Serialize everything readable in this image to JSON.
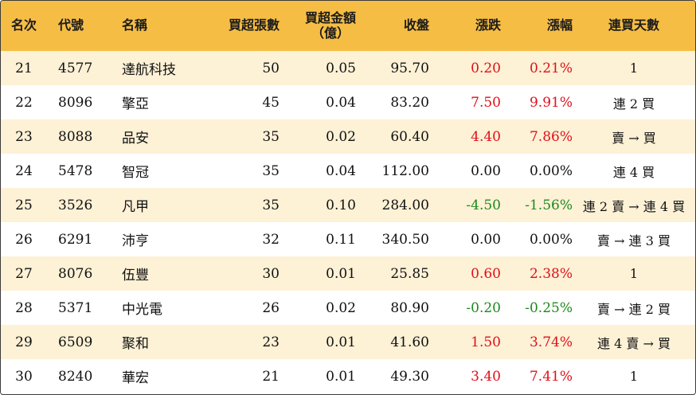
{
  "headers": {
    "rank": "名次",
    "code": "代號",
    "name": "名稱",
    "net_buy_lots": "買超張數",
    "net_buy_amount_line1": "買超金額",
    "net_buy_amount_line2": "（億）",
    "close": "收盤",
    "change": "漲跌",
    "change_pct": "漲幅",
    "consecutive_days": "連買天數"
  },
  "colors": {
    "header_bg": "#f6bd45",
    "row_alt_bg": "#fdf1d6",
    "up": "#e0101a",
    "down": "#1c8a1c"
  },
  "rows": [
    {
      "rank": "21",
      "code": "4577",
      "name": "達航科技",
      "lots": "50",
      "amount": "0.05",
      "close": "95.70",
      "change": "0.20",
      "pct": "0.21%",
      "trend": "up",
      "days": "1"
    },
    {
      "rank": "22",
      "code": "8096",
      "name": "擎亞",
      "lots": "45",
      "amount": "0.04",
      "close": "83.20",
      "change": "7.50",
      "pct": "9.91%",
      "trend": "up",
      "days": "連 2 買"
    },
    {
      "rank": "23",
      "code": "8088",
      "name": "品安",
      "lots": "35",
      "amount": "0.02",
      "close": "60.40",
      "change": "4.40",
      "pct": "7.86%",
      "trend": "up",
      "days": "賣 → 買"
    },
    {
      "rank": "24",
      "code": "5478",
      "name": "智冠",
      "lots": "35",
      "amount": "0.04",
      "close": "112.00",
      "change": "0.00",
      "pct": "0.00%",
      "trend": "flat",
      "days": "連 4 買"
    },
    {
      "rank": "25",
      "code": "3526",
      "name": "凡甲",
      "lots": "35",
      "amount": "0.10",
      "close": "284.00",
      "change": "-4.50",
      "pct": "-1.56%",
      "trend": "down",
      "days": "連 2 賣 → 連 4 買"
    },
    {
      "rank": "26",
      "code": "6291",
      "name": "沛亨",
      "lots": "32",
      "amount": "0.11",
      "close": "340.50",
      "change": "0.00",
      "pct": "0.00%",
      "trend": "flat",
      "days": "賣 → 連 3 買"
    },
    {
      "rank": "27",
      "code": "8076",
      "name": "伍豐",
      "lots": "30",
      "amount": "0.01",
      "close": "25.85",
      "change": "0.60",
      "pct": "2.38%",
      "trend": "up",
      "days": "1"
    },
    {
      "rank": "28",
      "code": "5371",
      "name": "中光電",
      "lots": "26",
      "amount": "0.02",
      "close": "80.90",
      "change": "-0.20",
      "pct": "-0.25%",
      "trend": "down",
      "days": "賣 → 連 2 買"
    },
    {
      "rank": "29",
      "code": "6509",
      "name": "聚和",
      "lots": "23",
      "amount": "0.01",
      "close": "41.60",
      "change": "1.50",
      "pct": "3.74%",
      "trend": "up",
      "days": "連 4 賣 → 買"
    },
    {
      "rank": "30",
      "code": "8240",
      "name": "華宏",
      "lots": "21",
      "amount": "0.01",
      "close": "49.30",
      "change": "3.40",
      "pct": "7.41%",
      "trend": "up",
      "days": "1"
    }
  ]
}
